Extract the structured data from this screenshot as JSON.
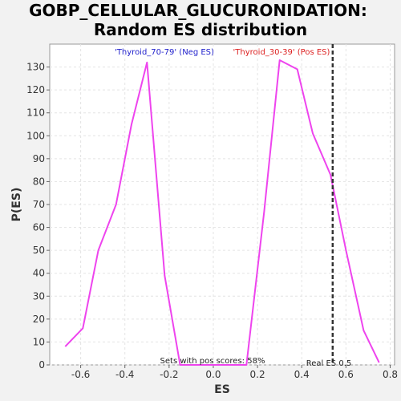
{
  "chart_data": {
    "type": "line",
    "title_line1": "GOBP_CELLULAR_GLUCURONIDATION:",
    "title_line2": "Random ES distribution",
    "xlabel": "ES",
    "ylabel": "P(ES)",
    "xlim": [
      -0.74,
      0.82
    ],
    "ylim": [
      0,
      140
    ],
    "x_ticks": [
      -0.6,
      -0.4,
      -0.2,
      0.0,
      0.2,
      0.4,
      0.6,
      0.8
    ],
    "x_tick_labels": [
      "-0.6",
      "-0.4",
      "-0.2",
      "0.0",
      "0.2",
      "0.4",
      "0.6",
      "0.8"
    ],
    "y_ticks": [
      0,
      10,
      20,
      30,
      40,
      50,
      60,
      70,
      80,
      90,
      100,
      110,
      120,
      130
    ],
    "y_tick_labels": [
      "0",
      "10",
      "20",
      "30",
      "40",
      "50",
      "60",
      "70",
      "80",
      "90",
      "100",
      "110",
      "120",
      "130"
    ],
    "grid": true,
    "series": [
      {
        "color": "#ee44ee",
        "points": [
          [
            -0.67,
            8
          ],
          [
            -0.59,
            16
          ],
          [
            -0.52,
            50
          ],
          [
            -0.44,
            70
          ],
          [
            -0.37,
            105
          ],
          [
            -0.3,
            132
          ],
          [
            -0.22,
            39
          ],
          [
            -0.15,
            0
          ],
          [
            0.0,
            0
          ],
          [
            0.15,
            0
          ],
          [
            0.23,
            67
          ],
          [
            0.3,
            133
          ],
          [
            0.38,
            129
          ],
          [
            0.45,
            101
          ],
          [
            0.53,
            83
          ],
          [
            0.6,
            50
          ],
          [
            0.68,
            15
          ],
          [
            0.75,
            1
          ]
        ]
      }
    ],
    "legend": {
      "neg_label": "'Thyroid_70-79' (Neg ES)",
      "neg_color": "#2222cc",
      "pos_label": "'Thyroid_30-39' (Pos ES)",
      "pos_color": "#dd2222",
      "placement": "top"
    },
    "real_es": {
      "value": 0.54,
      "label": "Real ES 0.5"
    },
    "annotation": "Sets with pos scores: 58%"
  }
}
